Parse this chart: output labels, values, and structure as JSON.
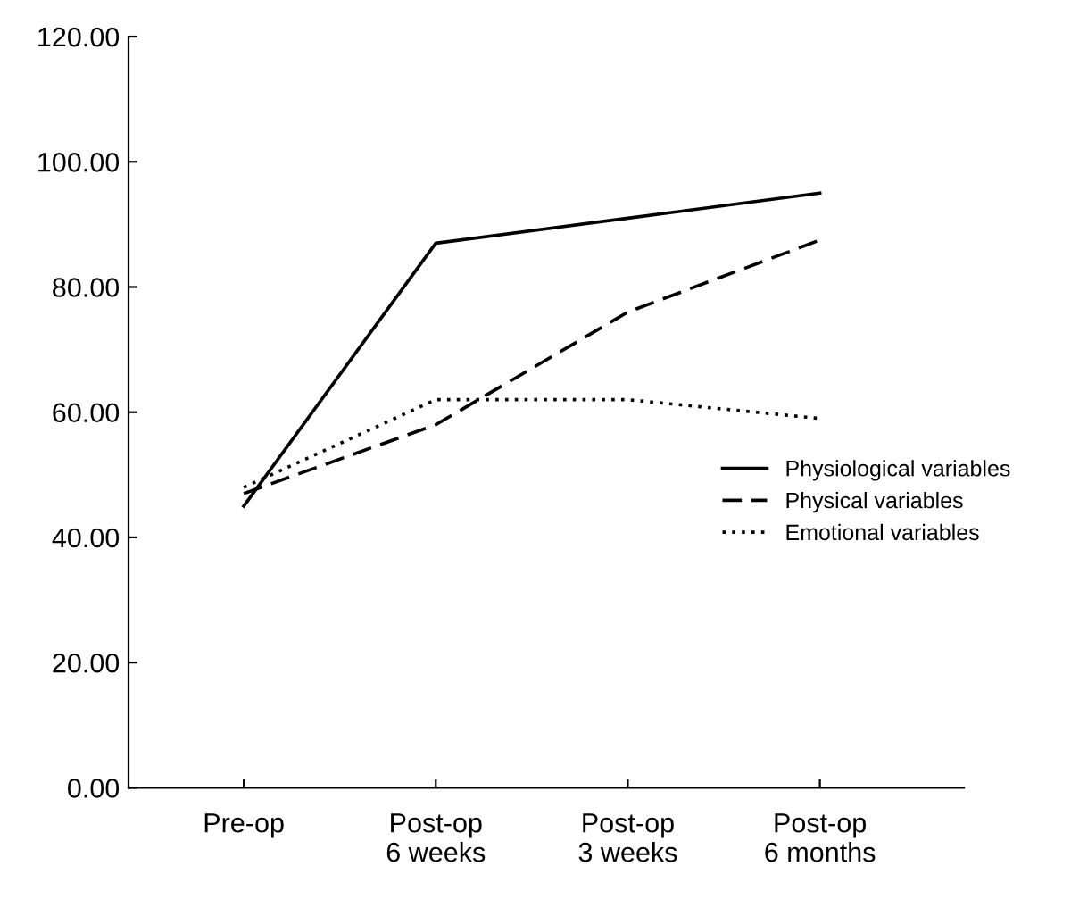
{
  "chart_data": {
    "type": "line",
    "categories": [
      "Pre-op",
      "Post-op\n6 weeks",
      "Post-op\n3 weeks",
      "Post-op\n6 months"
    ],
    "series": [
      {
        "name": "Physiological variables",
        "color": "#000000",
        "line_style": "solid",
        "values": [
          45,
          87,
          91,
          95
        ]
      },
      {
        "name": "Physical variables",
        "color": "#000000",
        "line_style": "dashed",
        "values": [
          47,
          58,
          76,
          87.5
        ]
      },
      {
        "name": "Emotional variables",
        "color": "#000000",
        "line_style": "dotted",
        "values": [
          48,
          62,
          62,
          59
        ]
      }
    ],
    "ylim": [
      0,
      120
    ],
    "yticks": [
      {
        "value": 0,
        "label": "0.00"
      },
      {
        "value": 20,
        "label": "20.00"
      },
      {
        "value": 40,
        "label": "40.00"
      },
      {
        "value": 60,
        "label": "60.00"
      },
      {
        "value": 80,
        "label": "80.00"
      },
      {
        "value": 100,
        "label": "100.00"
      },
      {
        "value": 120,
        "label": "120.00"
      }
    ],
    "grid": false,
    "legend": "right",
    "marker": "none"
  }
}
